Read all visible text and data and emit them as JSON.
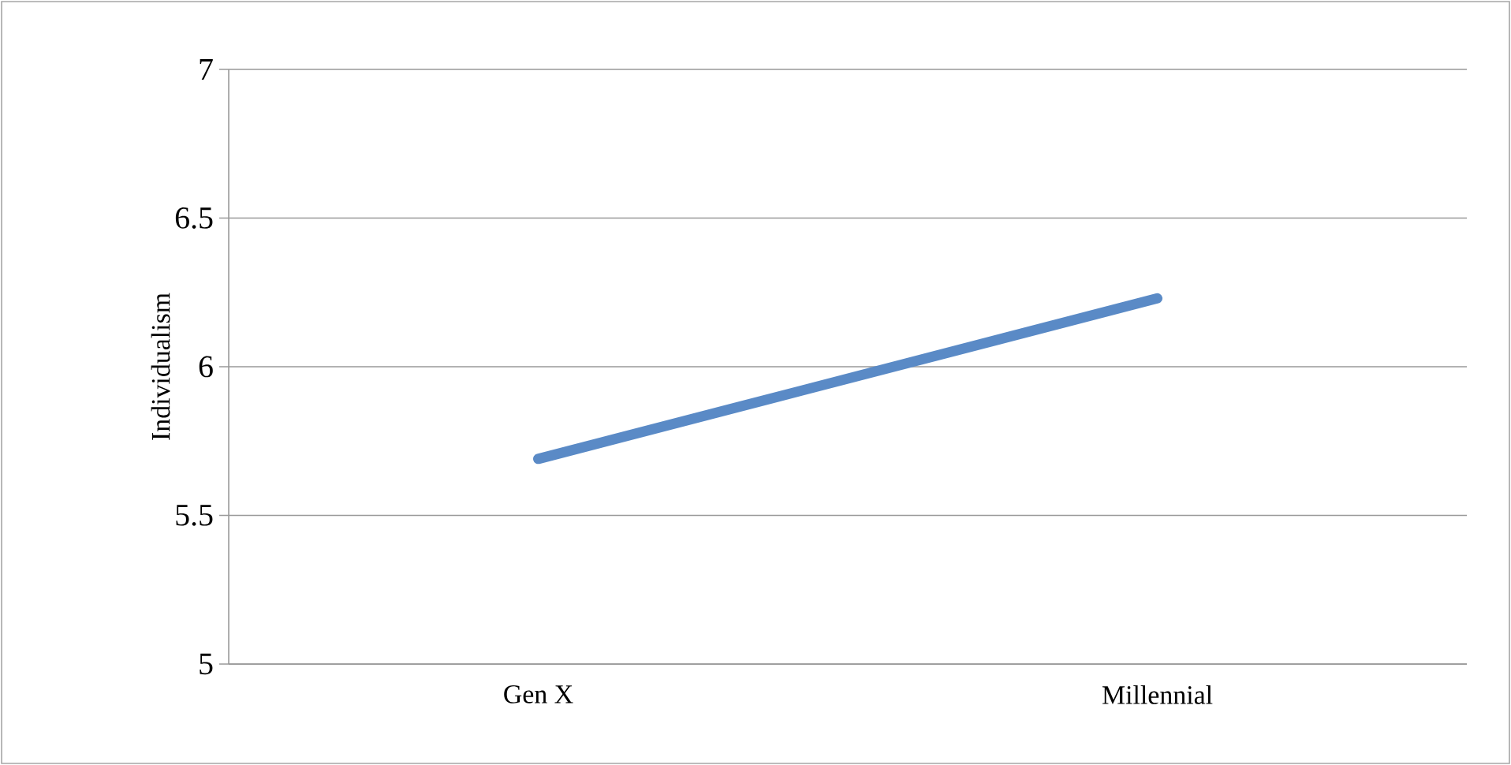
{
  "chart_data": {
    "type": "line",
    "ylabel": "Individualism",
    "categories": [
      "Gen X",
      "Millennial"
    ],
    "series": [
      {
        "color": "#5a8ac6",
        "values": [
          5.69,
          6.23
        ]
      }
    ],
    "ylim": [
      5,
      7
    ],
    "yticks": [
      5,
      5.5,
      6,
      6.5,
      7
    ],
    "grid": "y",
    "marker": "none",
    "line_style": "solid"
  }
}
